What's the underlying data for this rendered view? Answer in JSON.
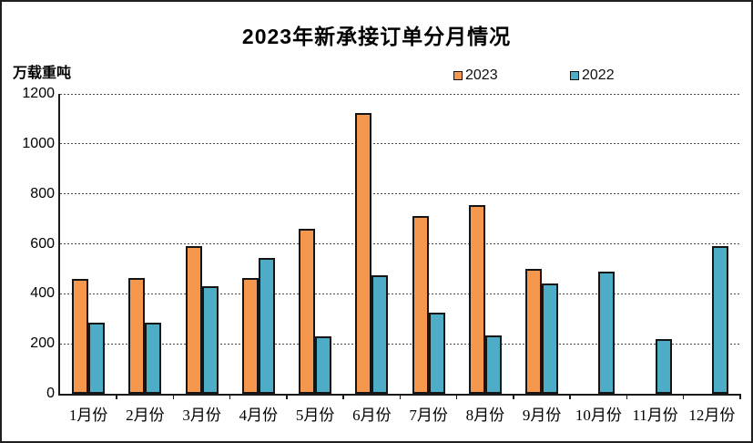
{
  "chart_data": {
    "type": "bar",
    "title": "2023年新承接订单分月情况",
    "unit_label": "万载重吨",
    "categories": [
      "1月份",
      "2月份",
      "3月份",
      "4月份",
      "5月份",
      "6月份",
      "7月份",
      "8月份",
      "9月份",
      "10月份",
      "11月份",
      "12月份"
    ],
    "series": [
      {
        "name": "2023",
        "color": "#F5984D",
        "values": [
          460,
          465,
          590,
          465,
          660,
          1125,
          710,
          755,
          500,
          null,
          null,
          null
        ]
      },
      {
        "name": "2022",
        "color": "#4DACC6",
        "values": [
          285,
          285,
          430,
          545,
          230,
          475,
          325,
          235,
          440,
          490,
          220,
          590
        ]
      }
    ],
    "ylim": [
      0,
      1200
    ],
    "yticks": [
      0,
      200,
      400,
      600,
      800,
      1000,
      1200
    ],
    "grid": true,
    "gridline_style": "dotted",
    "legend_position": "top-right",
    "bar_border_color": "#151515",
    "axis_color": "#1a1a1a"
  }
}
